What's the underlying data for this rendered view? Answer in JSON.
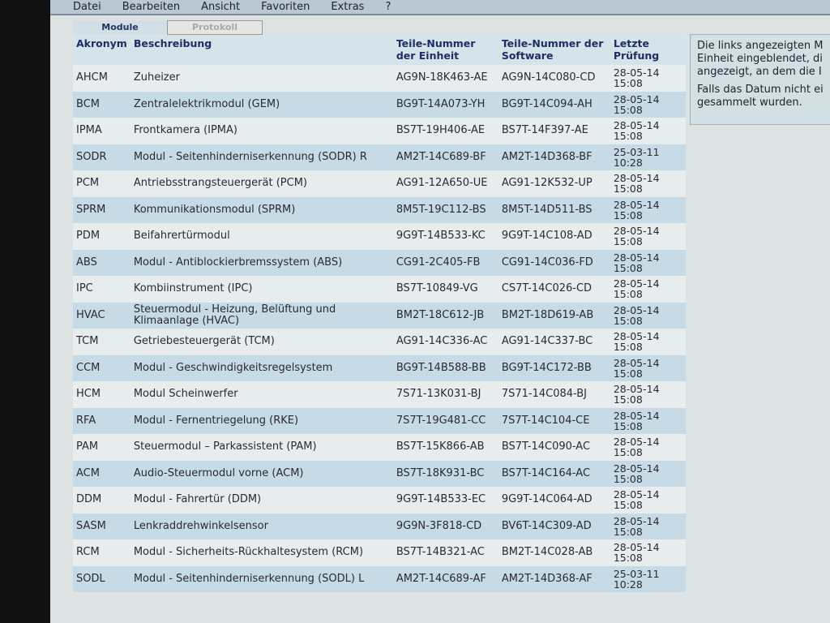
{
  "menu": [
    "Datei",
    "Bearbeiten",
    "Ansicht",
    "Favoriten",
    "Extras",
    "?"
  ],
  "tabs": {
    "modules": "Module",
    "protocol": "Protokoll"
  },
  "table": {
    "headers": [
      "Akronym",
      "Beschreibung",
      "Teile-Nummer der Einheit",
      "Teile-Nummer der Software",
      "Letzte Prüfung"
    ],
    "rows": [
      [
        "AHCM",
        "Zuheizer",
        "AG9N-18K463-AE",
        "AG9N-14C080-CD",
        "28-05-14 15:08"
      ],
      [
        "BCM",
        "Zentralelektrikmodul (GEM)",
        "BG9T-14A073-YH",
        "BG9T-14C094-AH",
        "28-05-14 15:08"
      ],
      [
        "IPMA",
        "Frontkamera (IPMA)",
        "BS7T-19H406-AE",
        "BS7T-14F397-AE",
        "28-05-14 15:08"
      ],
      [
        "SODR",
        "Modul - Seitenhinderniserkennung (SODR) R",
        "AM2T-14C689-BF",
        "AM2T-14D368-BF",
        "25-03-11 10:28"
      ],
      [
        "PCM",
        "Antriebsstrangsteuergerät (PCM)",
        "AG91-12A650-UE",
        "AG91-12K532-UP",
        "28-05-14 15:08"
      ],
      [
        "SPRM",
        "Kommunikationsmodul (SPRM)",
        "8M5T-19C112-BS",
        "8M5T-14D511-BS",
        "28-05-14 15:08"
      ],
      [
        "PDM",
        "Beifahrertürmodul",
        "9G9T-14B533-KC",
        "9G9T-14C108-AD",
        "28-05-14 15:08"
      ],
      [
        "ABS",
        "Modul - Antiblockierbremssystem (ABS)",
        "CG91-2C405-FB",
        "CG91-14C036-FD",
        "28-05-14 15:08"
      ],
      [
        "IPC",
        "Kombiinstrument (IPC)",
        "BS7T-10849-VG",
        "CS7T-14C026-CD",
        "28-05-14 15:08"
      ],
      [
        "HVAC",
        "Steuermodul - Heizung, Belüftung und Klimaanlage (HVAC)",
        "BM2T-18C612-JB",
        "BM2T-18D619-AB",
        "28-05-14 15:08"
      ],
      [
        "TCM",
        "Getriebesteuergerät (TCM)",
        "AG91-14C336-AC",
        "AG91-14C337-BC",
        "28-05-14 15:08"
      ],
      [
        "CCM",
        "Modul - Geschwindigkeitsregelsystem",
        "BG9T-14B588-BB",
        "BG9T-14C172-BB",
        "28-05-14 15:08"
      ],
      [
        "HCM",
        "Modul Scheinwerfer",
        "7S71-13K031-BJ",
        "7S71-14C084-BJ",
        "28-05-14 15:08"
      ],
      [
        "RFA",
        "Modul - Fernentriegelung (RKE)",
        "7S7T-19G481-CC",
        "7S7T-14C104-CE",
        "28-05-14 15:08"
      ],
      [
        "PAM",
        "Steuermodul – Parkassistent (PAM)",
        "BS7T-15K866-AB",
        "BS7T-14C090-AC",
        "28-05-14 15:08"
      ],
      [
        "ACM",
        "Audio-Steuermodul vorne (ACM)",
        "BS7T-18K931-BC",
        "BS7T-14C164-AC",
        "28-05-14 15:08"
      ],
      [
        "DDM",
        "Modul - Fahrertür (DDM)",
        "9G9T-14B533-EC",
        "9G9T-14C064-AD",
        "28-05-14 15:08"
      ],
      [
        "SASM",
        "Lenkraddrehwinkelsensor",
        "9G9N-3F818-CD",
        "BV6T-14C309-AD",
        "28-05-14 15:08"
      ],
      [
        "RCM",
        "Modul - Sicherheits-Rückhaltesystem (RCM)",
        "BS7T-14B321-AC",
        "BM2T-14C028-AB",
        "28-05-14 15:08"
      ],
      [
        "SODL",
        "Modul - Seitenhinderniserkennung (SODL) L",
        "AM2T-14C689-AF",
        "AM2T-14D368-AF",
        "25-03-11 10:28"
      ]
    ]
  },
  "info": {
    "p1": [
      "Die links angezeigten M",
      "Einheit eingeblendet, di",
      "angezeigt, an dem die I"
    ],
    "p2": [
      "Falls das Datum nicht ei",
      "gesammelt wurden."
    ]
  }
}
